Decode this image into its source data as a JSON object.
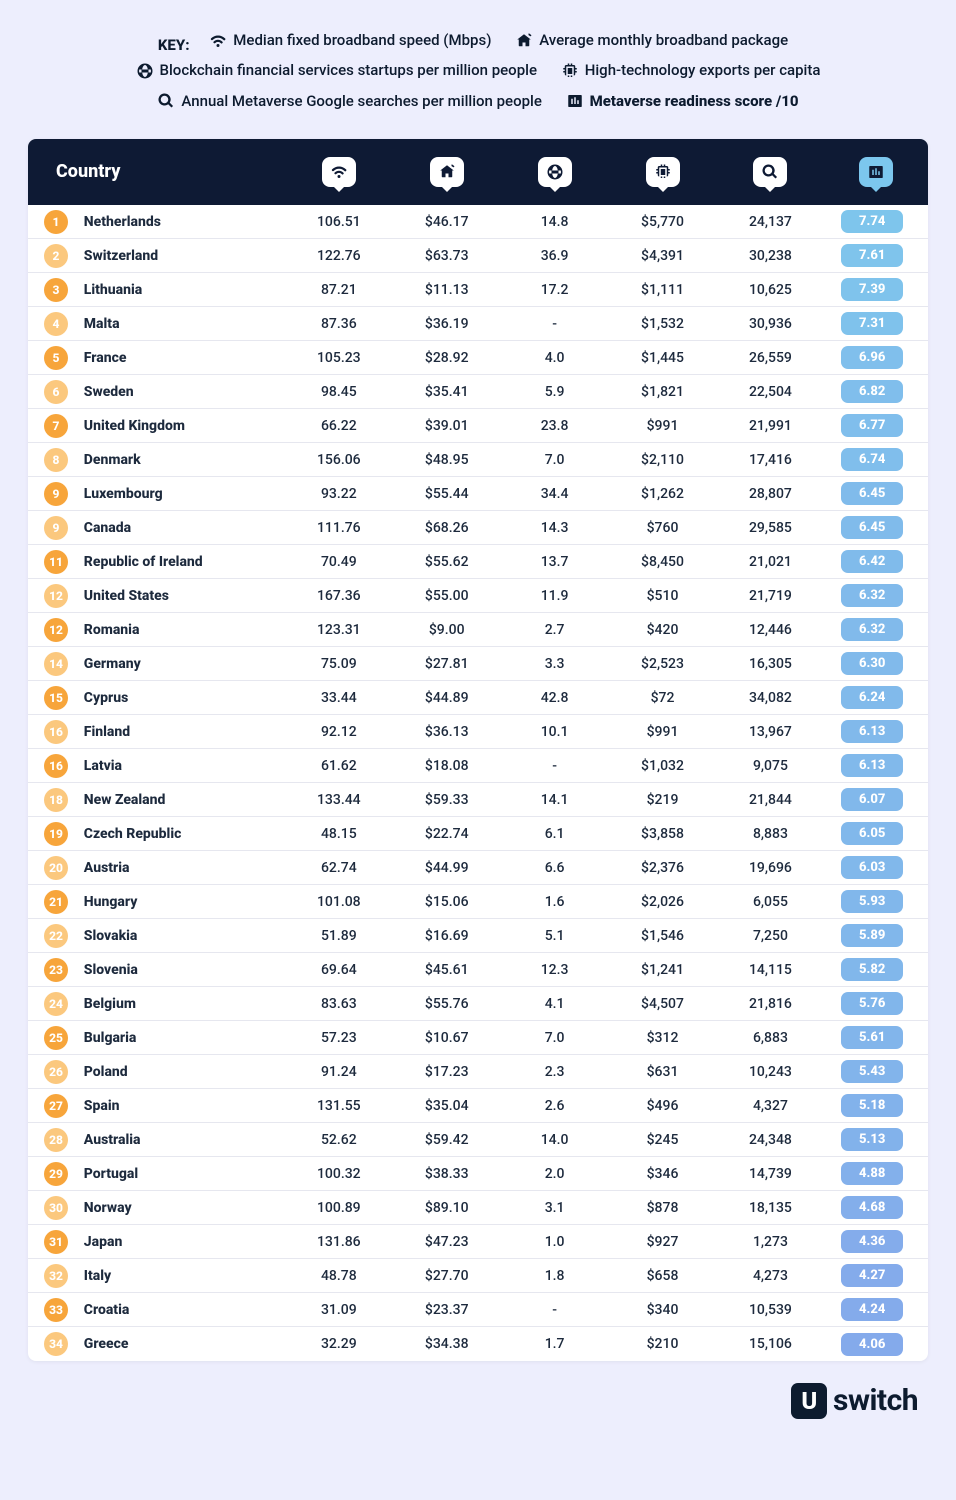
{
  "key": {
    "label": "KEY:",
    "items": [
      {
        "text": "Median fixed broadband speed (Mbps)",
        "bold": false
      },
      {
        "text": "Average monthly broadband package",
        "bold": false
      },
      {
        "text": "Blockchain financial services startups per million people",
        "bold": false
      },
      {
        "text": "High-technology exports per capita",
        "bold": false
      },
      {
        "text": "Annual Metaverse Google searches per million people",
        "bold": false
      },
      {
        "text": "Metaverse readiness score /10",
        "bold": true
      }
    ]
  },
  "table": {
    "header_country": "Country",
    "colors": {
      "header_bg": "#0e1a34",
      "bubble_bg": "#ffffff",
      "score_bubble_bg": "#7cc7ee",
      "row_border": "#e6e7ef",
      "page_bg": "#edeefd",
      "rank_dark": "#f7a53b",
      "rank_light": "#fbc87e",
      "score_start_h": 201,
      "score_start_s": 74,
      "score_start_l": 71,
      "score_end_h": 218,
      "score_end_s": 72,
      "score_end_l": 72
    },
    "score_domain": {
      "min": 4.06,
      "max": 7.74
    },
    "rows": [
      {
        "rank": "1",
        "country": "Netherlands",
        "v1": "106.51",
        "v2": "$46.17",
        "v3": "14.8",
        "v4": "$5,770",
        "v5": "24,137",
        "score": "7.74"
      },
      {
        "rank": "2",
        "country": "Switzerland",
        "v1": "122.76",
        "v2": "$63.73",
        "v3": "36.9",
        "v4": "$4,391",
        "v5": "30,238",
        "score": "7.61"
      },
      {
        "rank": "3",
        "country": "Lithuania",
        "v1": "87.21",
        "v2": "$11.13",
        "v3": "17.2",
        "v4": "$1,111",
        "v5": "10,625",
        "score": "7.39"
      },
      {
        "rank": "4",
        "country": "Malta",
        "v1": "87.36",
        "v2": "$36.19",
        "v3": "-",
        "v4": "$1,532",
        "v5": "30,936",
        "score": "7.31"
      },
      {
        "rank": "5",
        "country": "France",
        "v1": "105.23",
        "v2": "$28.92",
        "v3": "4.0",
        "v4": "$1,445",
        "v5": "26,559",
        "score": "6.96"
      },
      {
        "rank": "6",
        "country": "Sweden",
        "v1": "98.45",
        "v2": "$35.41",
        "v3": "5.9",
        "v4": "$1,821",
        "v5": "22,504",
        "score": "6.82"
      },
      {
        "rank": "7",
        "country": "United Kingdom",
        "v1": "66.22",
        "v2": "$39.01",
        "v3": "23.8",
        "v4": "$991",
        "v5": "21,991",
        "score": "6.77"
      },
      {
        "rank": "8",
        "country": "Denmark",
        "v1": "156.06",
        "v2": "$48.95",
        "v3": "7.0",
        "v4": "$2,110",
        "v5": "17,416",
        "score": "6.74"
      },
      {
        "rank": "9",
        "country": "Luxembourg",
        "v1": "93.22",
        "v2": "$55.44",
        "v3": "34.4",
        "v4": "$1,262",
        "v5": "28,807",
        "score": "6.45"
      },
      {
        "rank": "9",
        "country": "Canada",
        "v1": "111.76",
        "v2": "$68.26",
        "v3": "14.3",
        "v4": "$760",
        "v5": "29,585",
        "score": "6.45"
      },
      {
        "rank": "11",
        "country": "Republic of Ireland",
        "v1": "70.49",
        "v2": "$55.62",
        "v3": "13.7",
        "v4": "$8,450",
        "v5": "21,021",
        "score": "6.42"
      },
      {
        "rank": "12",
        "country": "United States",
        "v1": "167.36",
        "v2": "$55.00",
        "v3": "11.9",
        "v4": "$510",
        "v5": "21,719",
        "score": "6.32"
      },
      {
        "rank": "12",
        "country": "Romania",
        "v1": "123.31",
        "v2": "$9.00",
        "v3": "2.7",
        "v4": "$420",
        "v5": "12,446",
        "score": "6.32"
      },
      {
        "rank": "14",
        "country": "Germany",
        "v1": "75.09",
        "v2": "$27.81",
        "v3": "3.3",
        "v4": "$2,523",
        "v5": "16,305",
        "score": "6.30"
      },
      {
        "rank": "15",
        "country": "Cyprus",
        "v1": "33.44",
        "v2": "$44.89",
        "v3": "42.8",
        "v4": "$72",
        "v5": "34,082",
        "score": "6.24"
      },
      {
        "rank": "16",
        "country": "Finland",
        "v1": "92.12",
        "v2": "$36.13",
        "v3": "10.1",
        "v4": "$991",
        "v5": "13,967",
        "score": "6.13"
      },
      {
        "rank": "16",
        "country": "Latvia",
        "v1": "61.62",
        "v2": "$18.08",
        "v3": "-",
        "v4": "$1,032",
        "v5": "9,075",
        "score": "6.13"
      },
      {
        "rank": "18",
        "country": "New Zealand",
        "v1": "133.44",
        "v2": "$59.33",
        "v3": "14.1",
        "v4": "$219",
        "v5": "21,844",
        "score": "6.07"
      },
      {
        "rank": "19",
        "country": "Czech Republic",
        "v1": "48.15",
        "v2": "$22.74",
        "v3": "6.1",
        "v4": "$3,858",
        "v5": "8,883",
        "score": "6.05"
      },
      {
        "rank": "20",
        "country": "Austria",
        "v1": "62.74",
        "v2": "$44.99",
        "v3": "6.6",
        "v4": "$2,376",
        "v5": "19,696",
        "score": "6.03"
      },
      {
        "rank": "21",
        "country": "Hungary",
        "v1": "101.08",
        "v2": "$15.06",
        "v3": "1.6",
        "v4": "$2,026",
        "v5": "6,055",
        "score": "5.93"
      },
      {
        "rank": "22",
        "country": "Slovakia",
        "v1": "51.89",
        "v2": "$16.69",
        "v3": "5.1",
        "v4": "$1,546",
        "v5": "7,250",
        "score": "5.89"
      },
      {
        "rank": "23",
        "country": "Slovenia",
        "v1": "69.64",
        "v2": "$45.61",
        "v3": "12.3",
        "v4": "$1,241",
        "v5": "14,115",
        "score": "5.82"
      },
      {
        "rank": "24",
        "country": "Belgium",
        "v1": "83.63",
        "v2": "$55.76",
        "v3": "4.1",
        "v4": "$4,507",
        "v5": "21,816",
        "score": "5.76"
      },
      {
        "rank": "25",
        "country": "Bulgaria",
        "v1": "57.23",
        "v2": "$10.67",
        "v3": "7.0",
        "v4": "$312",
        "v5": "6,883",
        "score": "5.61"
      },
      {
        "rank": "26",
        "country": "Poland",
        "v1": "91.24",
        "v2": "$17.23",
        "v3": "2.3",
        "v4": "$631",
        "v5": "10,243",
        "score": "5.43"
      },
      {
        "rank": "27",
        "country": "Spain",
        "v1": "131.55",
        "v2": "$35.04",
        "v3": "2.6",
        "v4": "$496",
        "v5": "4,327",
        "score": "5.18"
      },
      {
        "rank": "28",
        "country": "Australia",
        "v1": "52.62",
        "v2": "$59.42",
        "v3": "14.0",
        "v4": "$245",
        "v5": "24,348",
        "score": "5.13"
      },
      {
        "rank": "29",
        "country": "Portugal",
        "v1": "100.32",
        "v2": "$38.33",
        "v3": "2.0",
        "v4": "$346",
        "v5": "14,739",
        "score": "4.88"
      },
      {
        "rank": "30",
        "country": "Norway",
        "v1": "100.89",
        "v2": "$89.10",
        "v3": "3.1",
        "v4": "$878",
        "v5": "18,135",
        "score": "4.68"
      },
      {
        "rank": "31",
        "country": "Japan",
        "v1": "131.86",
        "v2": "$47.23",
        "v3": "1.0",
        "v4": "$927",
        "v5": "1,273",
        "score": "4.36"
      },
      {
        "rank": "32",
        "country": "Italy",
        "v1": "48.78",
        "v2": "$27.70",
        "v3": "1.8",
        "v4": "$658",
        "v5": "4,273",
        "score": "4.27"
      },
      {
        "rank": "33",
        "country": "Croatia",
        "v1": "31.09",
        "v2": "$23.37",
        "v3": "-",
        "v4": "$340",
        "v5": "10,539",
        "score": "4.24"
      },
      {
        "rank": "34",
        "country": "Greece",
        "v1": "32.29",
        "v2": "$34.38",
        "v3": "1.7",
        "v4": "$210",
        "v5": "15,106",
        "score": "4.06"
      }
    ]
  },
  "footer": {
    "brand": "switch",
    "brand_u": "U"
  }
}
